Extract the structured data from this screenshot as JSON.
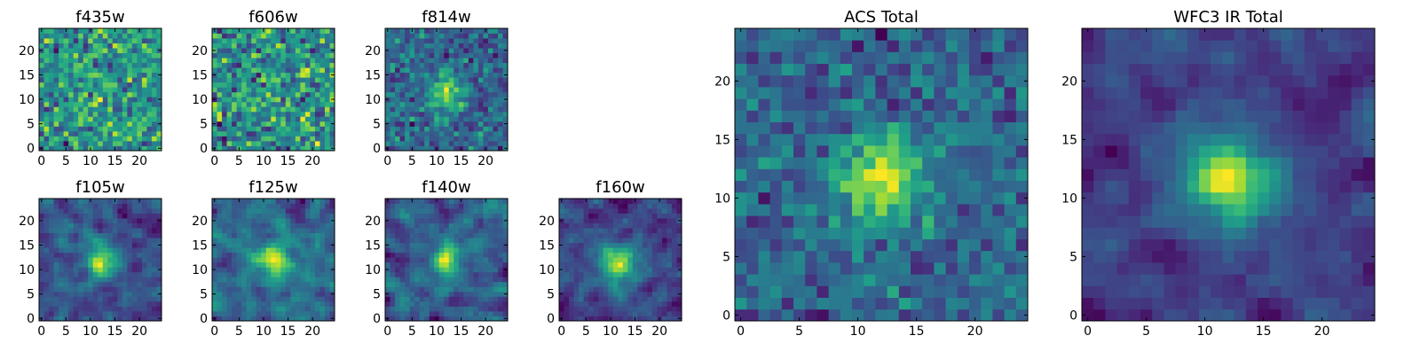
{
  "chart_data": [
    {
      "type": "heatmap",
      "title": "f435w",
      "grid_size": 25,
      "xticks": [
        0,
        5,
        10,
        15,
        20
      ],
      "yticks": [
        0,
        5,
        10,
        15,
        20
      ],
      "source_peak": 0.05,
      "noise_level": 0.95,
      "smoothing": 0,
      "seed": 11
    },
    {
      "type": "heatmap",
      "title": "f606w",
      "grid_size": 25,
      "xticks": [
        0,
        5,
        10,
        15,
        20
      ],
      "yticks": [
        0,
        5,
        10,
        15,
        20
      ],
      "source_peak": 0.1,
      "noise_level": 0.9,
      "smoothing": 0,
      "seed": 23
    },
    {
      "type": "heatmap",
      "title": "f814w",
      "grid_size": 25,
      "xticks": [
        0,
        5,
        10,
        15,
        20
      ],
      "yticks": [
        0,
        5,
        10,
        15,
        20
      ],
      "source_peak": 0.45,
      "noise_level": 0.75,
      "smoothing": 0,
      "seed": 37
    },
    {
      "type": "heatmap",
      "title": "f105w",
      "grid_size": 25,
      "xticks": [
        0,
        5,
        10,
        15,
        20
      ],
      "yticks": [
        0,
        5,
        10,
        15,
        20
      ],
      "source_peak": 0.55,
      "noise_level": 0.8,
      "smoothing": 1,
      "seed": 41
    },
    {
      "type": "heatmap",
      "title": "f125w",
      "grid_size": 25,
      "xticks": [
        0,
        5,
        10,
        15,
        20
      ],
      "yticks": [
        0,
        5,
        10,
        15,
        20
      ],
      "source_peak": 0.5,
      "noise_level": 0.85,
      "smoothing": 1,
      "seed": 53
    },
    {
      "type": "heatmap",
      "title": "f140w",
      "grid_size": 25,
      "xticks": [
        0,
        5,
        10,
        15,
        20
      ],
      "yticks": [
        0,
        5,
        10,
        15,
        20
      ],
      "source_peak": 0.5,
      "noise_level": 0.85,
      "smoothing": 1,
      "seed": 67
    },
    {
      "type": "heatmap",
      "title": "f160w",
      "grid_size": 25,
      "xticks": [
        0,
        5,
        10,
        15,
        20
      ],
      "yticks": [
        0,
        5,
        10,
        15,
        20
      ],
      "source_peak": 0.6,
      "noise_level": 0.75,
      "smoothing": 1,
      "seed": 79
    },
    {
      "type": "heatmap",
      "title": "ACS Total",
      "grid_size": 25,
      "xticks": [
        0,
        5,
        10,
        15,
        20
      ],
      "yticks": [
        0,
        5,
        10,
        15,
        20
      ],
      "source_peak": 0.45,
      "noise_level": 0.5,
      "smoothing": 0,
      "seed": 97
    },
    {
      "type": "heatmap",
      "title": "WFC3 IR Total",
      "grid_size": 25,
      "xticks": [
        0,
        5,
        10,
        15,
        20
      ],
      "yticks": [
        0,
        5,
        10,
        15,
        20
      ],
      "source_peak": 0.75,
      "noise_level": 0.55,
      "smoothing": 1,
      "seed": 113
    }
  ],
  "colormap": "viridis",
  "colors": {
    "axis": "#000000",
    "background": "#ffffff"
  }
}
